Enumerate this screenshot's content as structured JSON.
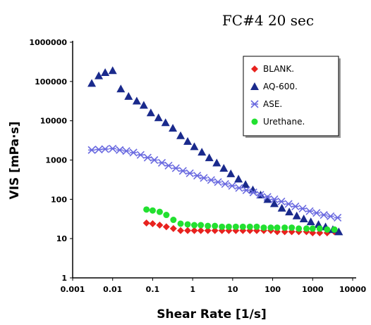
{
  "chart_data": {
    "type": "scatter",
    "title": "FC#4 20 sec",
    "xlabel": "Shear Rate [1/s]",
    "ylabel": "VIS [mPa·s]",
    "x_scale": "log",
    "y_scale": "log",
    "xlim": [
      0.001,
      10000
    ],
    "ylim": [
      1,
      1000000
    ],
    "x_ticks": [
      "0.001",
      "0.01",
      "0.1",
      "1",
      "10",
      "100",
      "1000",
      "10000"
    ],
    "y_ticks": [
      "1",
      "10",
      "100",
      "1000",
      "10000",
      "100000",
      "1000000"
    ],
    "legend_position": "top-right",
    "grid": false,
    "series": [
      {
        "name": "BLANK.",
        "color": "#e8221e",
        "marker": "diamond",
        "x": [
          0.07,
          0.1,
          0.15,
          0.22,
          0.33,
          0.5,
          0.75,
          1.1,
          1.6,
          2.4,
          3.6,
          5.4,
          8,
          12,
          18,
          27,
          40,
          60,
          90,
          130,
          200,
          300,
          450,
          700,
          1000,
          1500,
          2300,
          3500
        ],
        "y": [
          25,
          24,
          22,
          20,
          18,
          16,
          16,
          16,
          16,
          16,
          16,
          16,
          16,
          16,
          16,
          16,
          16,
          16,
          16,
          15,
          15,
          15,
          15,
          15,
          14,
          14,
          14,
          15
        ]
      },
      {
        "name": "AQ-600.",
        "color": "#1a2a8c",
        "marker": "triangle",
        "x": [
          0.003,
          0.0045,
          0.0065,
          0.01,
          0.016,
          0.025,
          0.04,
          0.06,
          0.09,
          0.14,
          0.21,
          0.32,
          0.5,
          0.75,
          1.1,
          1.7,
          2.6,
          4,
          6,
          9,
          14,
          21,
          32,
          50,
          75,
          110,
          170,
          260,
          400,
          600,
          900,
          1400,
          2100,
          3200,
          4500
        ],
        "y": [
          90000,
          140000,
          170000,
          190000,
          65000,
          42000,
          32000,
          25000,
          16000,
          12000,
          9000,
          6500,
          4200,
          3000,
          2200,
          1600,
          1150,
          850,
          620,
          450,
          330,
          240,
          175,
          130,
          100,
          78,
          60,
          48,
          38,
          32,
          27,
          23,
          20,
          17,
          15
        ]
      },
      {
        "name": "ASE.",
        "color": "#6b6be0",
        "marker": "asterisk",
        "x": [
          0.003,
          0.0045,
          0.0065,
          0.01,
          0.015,
          0.022,
          0.033,
          0.05,
          0.075,
          0.11,
          0.17,
          0.25,
          0.38,
          0.57,
          0.85,
          1.3,
          1.9,
          2.9,
          4.3,
          6.5,
          9.7,
          14.5,
          22,
          33,
          49,
          74,
          110,
          165,
          250,
          370,
          560,
          840,
          1250,
          1900,
          2800,
          4200
        ],
        "y": [
          1800,
          1850,
          1900,
          1950,
          1800,
          1700,
          1550,
          1350,
          1150,
          1000,
          850,
          720,
          620,
          530,
          460,
          400,
          350,
          310,
          275,
          245,
          220,
          195,
          170,
          150,
          130,
          115,
          100,
          88,
          76,
          66,
          58,
          50,
          45,
          40,
          37,
          34
        ]
      },
      {
        "name": "Urethane.",
        "color": "#22e030",
        "marker": "circle",
        "x": [
          0.07,
          0.1,
          0.15,
          0.22,
          0.33,
          0.5,
          0.75,
          1.1,
          1.6,
          2.4,
          3.6,
          5.4,
          8,
          12,
          18,
          27,
          40,
          60,
          90,
          130,
          200,
          300,
          450,
          700,
          1000,
          1500,
          2300,
          3500
        ],
        "y": [
          55,
          52,
          48,
          40,
          30,
          24,
          23,
          22,
          22,
          21,
          21,
          20,
          20,
          20,
          20,
          20,
          20,
          19,
          19,
          19,
          19,
          19,
          18,
          18,
          18,
          18,
          17,
          17
        ]
      }
    ]
  }
}
